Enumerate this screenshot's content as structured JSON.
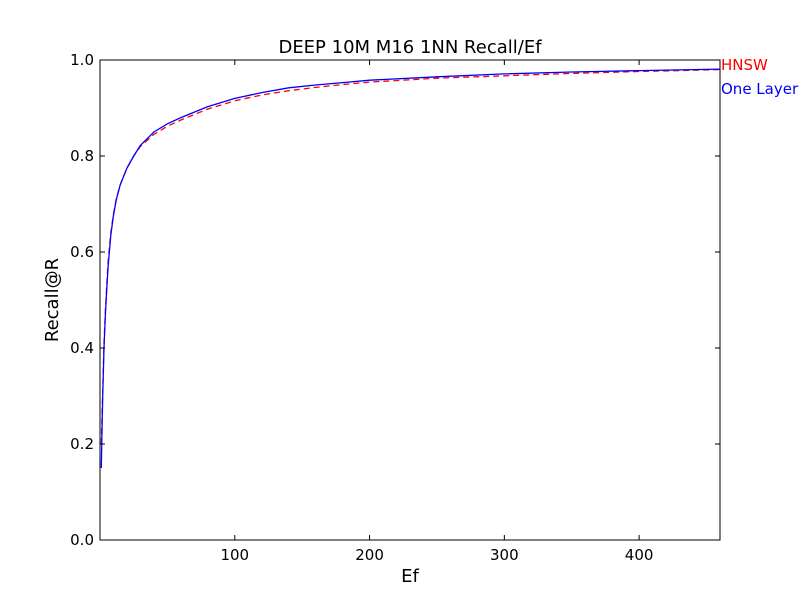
{
  "chart_data": {
    "type": "line",
    "title": "DEEP 10M M16 1NN Recall/Ef",
    "xlabel": "Ef",
    "ylabel": "Recall@R",
    "xlim": [
      0,
      460
    ],
    "ylim": [
      0.0,
      1.0
    ],
    "x_ticks": [
      100,
      200,
      300,
      400
    ],
    "x_tick_labels": [
      "100",
      "200",
      "300",
      "400"
    ],
    "y_ticks": [
      0.0,
      0.2,
      0.4,
      0.6,
      0.8,
      1.0
    ],
    "y_tick_labels": [
      "0.0",
      "0.2",
      "0.4",
      "0.6",
      "0.8",
      "1.0"
    ],
    "grid": false,
    "legend_placement": "outside-right",
    "series": [
      {
        "name": "HNSW",
        "color": "#ff0000",
        "style": "dashed",
        "x": [
          1,
          2,
          3,
          4,
          5,
          6,
          8,
          10,
          12,
          15,
          20,
          25,
          30,
          40,
          50,
          60,
          80,
          100,
          120,
          140,
          160,
          180,
          200,
          250,
          300,
          350,
          400,
          460
        ],
        "y": [
          0.2,
          0.31,
          0.41,
          0.48,
          0.53,
          0.58,
          0.64,
          0.68,
          0.71,
          0.74,
          0.775,
          0.8,
          0.82,
          0.845,
          0.862,
          0.875,
          0.898,
          0.915,
          0.927,
          0.936,
          0.943,
          0.949,
          0.954,
          0.962,
          0.967,
          0.972,
          0.976,
          0.98
        ]
      },
      {
        "name": "One Layer",
        "color": "#0000ff",
        "style": "solid",
        "x": [
          1,
          2,
          3,
          4,
          5,
          6,
          8,
          10,
          12,
          15,
          20,
          25,
          30,
          40,
          50,
          60,
          80,
          100,
          120,
          140,
          160,
          180,
          200,
          250,
          300,
          350,
          400,
          460
        ],
        "y": [
          0.15,
          0.3,
          0.4,
          0.47,
          0.52,
          0.57,
          0.635,
          0.677,
          0.708,
          0.74,
          0.775,
          0.8,
          0.822,
          0.85,
          0.867,
          0.88,
          0.903,
          0.92,
          0.932,
          0.942,
          0.948,
          0.953,
          0.958,
          0.965,
          0.971,
          0.975,
          0.978,
          0.981
        ]
      }
    ]
  }
}
